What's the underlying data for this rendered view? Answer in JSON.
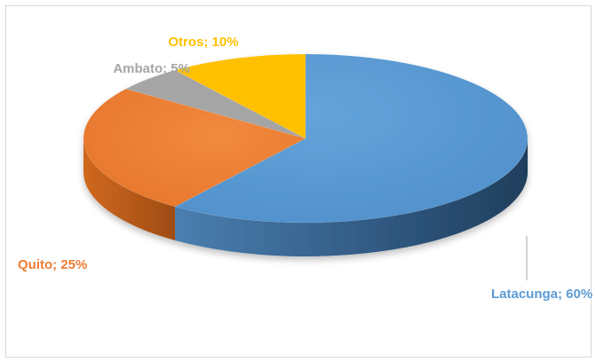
{
  "chart_data": {
    "type": "pie",
    "title": "",
    "legend": "none",
    "slices": [
      {
        "label": "Latacunga; 60%",
        "category": "Latacunga",
        "value": 60,
        "color": "#5b9bd5"
      },
      {
        "label": "Quito; 25%",
        "category": "Quito",
        "value": 25,
        "color": "#ed7d31"
      },
      {
        "label": "Ambato; 5%",
        "category": "Ambato",
        "value": 5,
        "color": "#a5a5a5"
      },
      {
        "label": "Otros; 10%",
        "category": "Otros",
        "value": 10,
        "color": "#ffc000"
      }
    ]
  }
}
